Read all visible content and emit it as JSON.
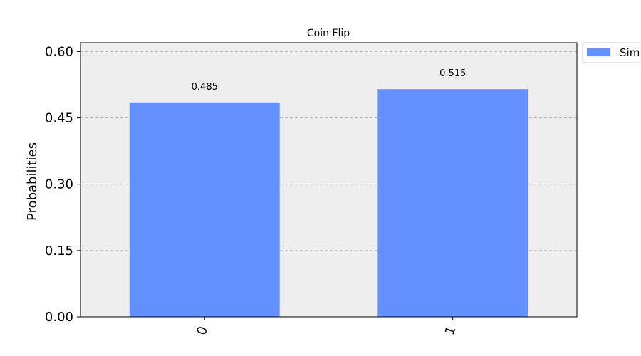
{
  "chart_data": {
    "type": "bar",
    "title": "Coin Flip",
    "xlabel": "",
    "ylabel": "Probabilities",
    "categories": [
      "0",
      "1"
    ],
    "series": [
      {
        "name": "Sim",
        "values": [
          0.485,
          0.515
        ],
        "color": "#648fff"
      }
    ],
    "data_labels": [
      "0.485",
      "0.515"
    ],
    "ylim": [
      0,
      0.62
    ],
    "yticks": [
      0,
      0.15,
      0.3,
      0.45,
      0.6
    ],
    "ytick_labels": [
      "0.00",
      "0.15",
      "0.30",
      "0.45",
      "0.60"
    ],
    "grid": true,
    "legend_position": "outside-top-right",
    "plot_background": "#eeeeee",
    "grid_color": "#b0b0b0"
  }
}
